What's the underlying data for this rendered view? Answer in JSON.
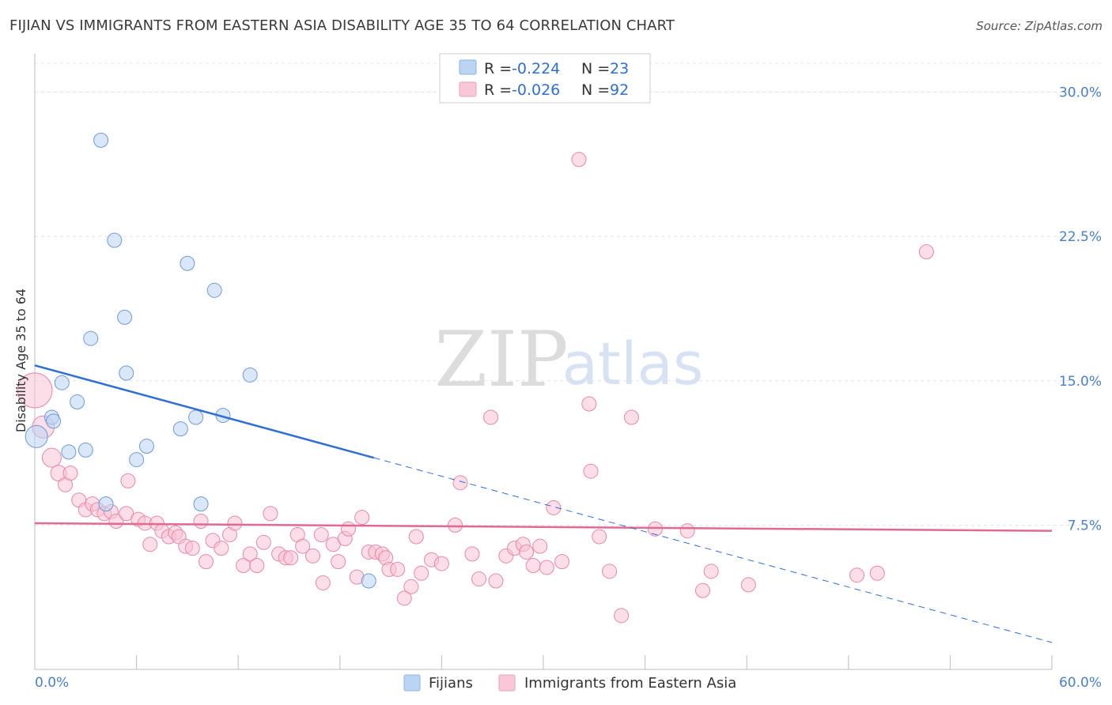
{
  "title": "FIJIAN VS IMMIGRANTS FROM EASTERN ASIA DISABILITY AGE 35 TO 64 CORRELATION CHART",
  "source": "Source: ZipAtlas.com",
  "watermark": {
    "zip": "ZIP",
    "atlas": "atlas"
  },
  "legend_top": [
    {
      "r_label": "R = ",
      "r_value": "-0.224",
      "n_label": "N = ",
      "n_value": "23",
      "color": "#a9c8f0"
    },
    {
      "r_label": "R = ",
      "r_value": "-0.026",
      "n_label": "N = ",
      "n_value": "92",
      "color": "#f6b8cc"
    }
  ],
  "legend_bottom": [
    "Fijians",
    "Immigrants from Eastern Asia"
  ],
  "colors": {
    "fijian": "#a9c8f0",
    "fijian_line": "#2f6fd0",
    "asia": "#f4b3c7",
    "asia_line": "#e06a93",
    "tick": "#4a7fc9"
  },
  "chart_data": {
    "type": "scatter",
    "title": "FIJIAN VS IMMIGRANTS FROM EASTERN ASIA DISABILITY AGE 35 TO 64 CORRELATION CHART",
    "xlabel": "",
    "ylabel": "Disability Age 35 to 64",
    "xlim": [
      0,
      60
    ],
    "ylim": [
      0,
      31.5
    ],
    "x_tick_labels": [
      "0.0%",
      "60.0%"
    ],
    "y_ticks": [
      7.5,
      15.0,
      22.5,
      30.0
    ],
    "y_tick_labels": [
      "7.5%",
      "15.0%",
      "22.5%",
      "30.0%"
    ],
    "grid": true,
    "series": [
      {
        "name": "Fijians",
        "points": [
          [
            0.1,
            12.1,
            14
          ],
          [
            1.0,
            13.1,
            9
          ],
          [
            1.1,
            12.9,
            9
          ],
          [
            1.6,
            14.9,
            9
          ],
          [
            2.0,
            11.3,
            9
          ],
          [
            2.5,
            13.9,
            9
          ],
          [
            3.0,
            11.4,
            9
          ],
          [
            3.3,
            17.2,
            9
          ],
          [
            3.9,
            27.5,
            9
          ],
          [
            4.2,
            8.6,
            9
          ],
          [
            4.7,
            22.3,
            9
          ],
          [
            5.3,
            18.3,
            9
          ],
          [
            5.4,
            15.4,
            9
          ],
          [
            6.0,
            10.9,
            9
          ],
          [
            6.6,
            11.6,
            9
          ],
          [
            8.6,
            12.5,
            9
          ],
          [
            9.0,
            21.1,
            9
          ],
          [
            9.5,
            13.1,
            9
          ],
          [
            9.8,
            8.6,
            9
          ],
          [
            10.6,
            19.7,
            9
          ],
          [
            11.1,
            13.2,
            9
          ],
          [
            12.7,
            15.3,
            9
          ],
          [
            19.7,
            4.6,
            9
          ]
        ],
        "trend": {
          "solid": [
            [
              0,
              15.8
            ],
            [
              20,
              11.0
            ]
          ],
          "dashed": [
            [
              20,
              11.0
            ],
            [
              60,
              1.4
            ]
          ]
        }
      },
      {
        "name": "Immigrants from Eastern Asia",
        "points": [
          [
            0.0,
            14.5,
            22
          ],
          [
            0.5,
            12.6,
            14
          ],
          [
            1.0,
            11.0,
            12
          ],
          [
            1.4,
            10.2,
            10
          ],
          [
            1.8,
            9.6,
            9
          ],
          [
            2.1,
            10.2,
            9
          ],
          [
            2.6,
            8.8,
            9
          ],
          [
            3.0,
            8.3,
            9
          ],
          [
            3.4,
            8.6,
            9
          ],
          [
            3.7,
            8.3,
            9
          ],
          [
            4.1,
            8.1,
            9
          ],
          [
            4.5,
            8.2,
            9
          ],
          [
            4.8,
            7.7,
            9
          ],
          [
            5.5,
            9.8,
            9
          ],
          [
            5.4,
            8.1,
            9
          ],
          [
            6.1,
            7.8,
            9
          ],
          [
            6.5,
            7.6,
            9
          ],
          [
            6.8,
            6.5,
            9
          ],
          [
            7.2,
            7.6,
            9
          ],
          [
            7.5,
            7.2,
            9
          ],
          [
            7.9,
            6.9,
            9
          ],
          [
            8.3,
            7.1,
            9
          ],
          [
            8.5,
            6.9,
            9
          ],
          [
            8.9,
            6.4,
            9
          ],
          [
            9.3,
            6.3,
            9
          ],
          [
            9.8,
            7.7,
            9
          ],
          [
            10.1,
            5.6,
            9
          ],
          [
            10.5,
            6.7,
            9
          ],
          [
            11.0,
            6.3,
            9
          ],
          [
            11.5,
            7.0,
            9
          ],
          [
            11.8,
            7.6,
            9
          ],
          [
            12.3,
            5.4,
            9
          ],
          [
            12.7,
            6.0,
            9
          ],
          [
            13.1,
            5.4,
            9
          ],
          [
            13.5,
            6.6,
            9
          ],
          [
            13.9,
            8.1,
            9
          ],
          [
            14.4,
            6.0,
            9
          ],
          [
            14.8,
            5.8,
            9
          ],
          [
            15.1,
            5.8,
            9
          ],
          [
            15.5,
            7.0,
            9
          ],
          [
            15.8,
            6.4,
            9
          ],
          [
            16.4,
            5.9,
            9
          ],
          [
            16.9,
            7.0,
            9
          ],
          [
            17.0,
            4.5,
            9
          ],
          [
            17.6,
            6.5,
            9
          ],
          [
            17.9,
            5.6,
            9
          ],
          [
            18.3,
            6.8,
            9
          ],
          [
            18.5,
            7.3,
            9
          ],
          [
            19.0,
            4.8,
            9
          ],
          [
            19.3,
            7.9,
            9
          ],
          [
            19.7,
            6.1,
            9
          ],
          [
            20.1,
            6.1,
            9
          ],
          [
            20.5,
            6.0,
            9
          ],
          [
            20.7,
            5.8,
            9
          ],
          [
            20.9,
            5.2,
            9
          ],
          [
            21.4,
            5.2,
            9
          ],
          [
            21.8,
            3.7,
            9
          ],
          [
            22.2,
            4.3,
            9
          ],
          [
            22.5,
            6.9,
            9
          ],
          [
            22.8,
            5.0,
            9
          ],
          [
            23.4,
            5.7,
            9
          ],
          [
            24.0,
            5.5,
            9
          ],
          [
            24.8,
            7.5,
            9
          ],
          [
            25.1,
            9.7,
            9
          ],
          [
            25.8,
            6.0,
            9
          ],
          [
            26.2,
            4.7,
            9
          ],
          [
            26.9,
            13.1,
            9
          ],
          [
            27.2,
            4.6,
            9
          ],
          [
            27.8,
            5.9,
            9
          ],
          [
            28.3,
            6.3,
            9
          ],
          [
            28.8,
            6.5,
            9
          ],
          [
            29.0,
            6.1,
            9
          ],
          [
            29.4,
            5.4,
            9
          ],
          [
            29.8,
            6.4,
            9
          ],
          [
            30.2,
            5.3,
            9
          ],
          [
            30.6,
            8.4,
            9
          ],
          [
            31.1,
            5.6,
            9
          ],
          [
            32.1,
            26.5,
            9
          ],
          [
            32.7,
            13.8,
            9
          ],
          [
            32.8,
            10.3,
            9
          ],
          [
            33.3,
            6.9,
            9
          ],
          [
            33.9,
            5.1,
            9
          ],
          [
            34.6,
            2.8,
            9
          ],
          [
            35.2,
            13.1,
            9
          ],
          [
            36.6,
            7.3,
            9
          ],
          [
            38.5,
            7.2,
            9
          ],
          [
            39.4,
            4.1,
            9
          ],
          [
            39.9,
            5.1,
            9
          ],
          [
            42.1,
            4.4,
            9
          ],
          [
            48.5,
            4.9,
            9
          ],
          [
            49.7,
            5.0,
            9
          ],
          [
            52.6,
            21.7,
            9
          ]
        ],
        "trend": {
          "solid": [
            [
              0,
              7.6
            ],
            [
              60,
              7.2
            ]
          ]
        }
      }
    ]
  }
}
